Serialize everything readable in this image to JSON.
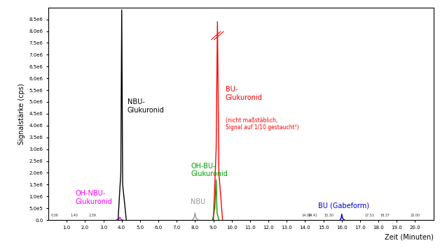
{
  "chart_data": {
    "type": "line",
    "y_label": "Signalstärke (cps)",
    "x_label": "Zeit (Minuten)",
    "xlim": [
      0,
      21
    ],
    "ylim": [
      0,
      9000000
    ],
    "xticks": [
      {
        "value": 1,
        "label": "1.0"
      },
      {
        "value": 2,
        "label": "2.0"
      },
      {
        "value": 3,
        "label": "3.0"
      },
      {
        "value": 4,
        "label": "4.0"
      },
      {
        "value": 5,
        "label": "5.0"
      },
      {
        "value": 6,
        "label": "6.0"
      },
      {
        "value": 7,
        "label": "7.0"
      },
      {
        "value": 8,
        "label": "8.0"
      },
      {
        "value": 9,
        "label": "9.0"
      },
      {
        "value": 10,
        "label": "10.0"
      },
      {
        "value": 11,
        "label": "11.0"
      },
      {
        "value": 12,
        "label": "12.0"
      },
      {
        "value": 13,
        "label": "13.0"
      },
      {
        "value": 14,
        "label": "14.0"
      },
      {
        "value": 15,
        "label": "15.0"
      },
      {
        "value": 16,
        "label": "16.0"
      },
      {
        "value": 17,
        "label": "17.0"
      },
      {
        "value": 18,
        "label": "18.0"
      },
      {
        "value": 19,
        "label": "19.0"
      },
      {
        "value": 20,
        "label": "20.0"
      }
    ],
    "yticks": [
      {
        "value": 0,
        "label": "0.0"
      },
      {
        "value": 500000,
        "label": "5.0e5"
      },
      {
        "value": 1000000,
        "label": "1.0e6"
      },
      {
        "value": 1500000,
        "label": "1.5e6"
      },
      {
        "value": 2000000,
        "label": "2.0e6"
      },
      {
        "value": 2500000,
        "label": "2.5e6"
      },
      {
        "value": 3000000,
        "label": "3.0e6"
      },
      {
        "value": 3500000,
        "label": "3.5e6"
      },
      {
        "value": 4000000,
        "label": "4.0e6"
      },
      {
        "value": 4500000,
        "label": "4.5e6"
      },
      {
        "value": 5000000,
        "label": "5.0e6"
      },
      {
        "value": 5500000,
        "label": "5.5e6"
      },
      {
        "value": 6000000,
        "label": "6.0e6"
      },
      {
        "value": 6500000,
        "label": "6.5e6"
      },
      {
        "value": 7000000,
        "label": "7.0e6"
      },
      {
        "value": 7500000,
        "label": "7.5e6"
      },
      {
        "value": 8000000,
        "label": "8.0e6"
      },
      {
        "value": 8500000,
        "label": "8.5e6"
      }
    ],
    "series": [
      {
        "name": "OH-NBU-\nGlukuronid",
        "color": "#ff00ff",
        "x": [
          3.7,
          3.85,
          3.9,
          3.95,
          4.05
        ],
        "values": [
          0,
          40000,
          120000,
          30000,
          0
        ]
      },
      {
        "name": "NBU-\nGlukuronid",
        "color": "#000000",
        "x": [
          3.8,
          3.95,
          4.0,
          4.05,
          4.25
        ],
        "values": [
          0,
          2000000,
          8900000,
          1500000,
          0
        ]
      },
      {
        "name": "NBU",
        "color": "#999999",
        "x": [
          7.85,
          7.95,
          8.0,
          8.05,
          8.15
        ],
        "values": [
          0,
          100000,
          300000,
          80000,
          0
        ]
      },
      {
        "name": "OH-BU-\nGlukuronid",
        "color": "#00a000",
        "x": [
          8.95,
          9.08,
          9.15,
          9.2,
          9.3
        ],
        "values": [
          0,
          500000,
          1700000,
          300000,
          0
        ]
      },
      {
        "name": "BU-\nGlukuronid",
        "color": "#ff0000",
        "x": [
          9.0,
          9.15,
          9.22,
          9.3,
          9.5
        ],
        "values": [
          0,
          3000000,
          8400000,
          2000000,
          0
        ]
      },
      {
        "name": "BU (Gabeform)",
        "color": "#0000cc",
        "x": [
          15.9,
          15.97,
          16.0,
          16.05,
          16.15
        ],
        "values": [
          0,
          80000,
          250000,
          60000,
          0
        ]
      }
    ],
    "annotations": [
      {
        "text": "(nicht maßstäblich,\nSignal auf 1/10 gestaucht!)",
        "color": "#ff0000"
      }
    ],
    "peak_labels": [
      {
        "value": 0.36,
        "label": "0.36"
      },
      {
        "value": 1.4,
        "label": "1.40"
      },
      {
        "value": 2.39,
        "label": "2.39"
      },
      {
        "value": 14.09,
        "label": "14.09"
      },
      {
        "value": 14.41,
        "label": "14.41"
      },
      {
        "value": 15.3,
        "label": "15.30"
      },
      {
        "value": 17.51,
        "label": "17.51"
      },
      {
        "value": 18.37,
        "label": "18.37"
      },
      {
        "value": 20.0,
        "label": "20.00"
      }
    ],
    "grid": false
  }
}
